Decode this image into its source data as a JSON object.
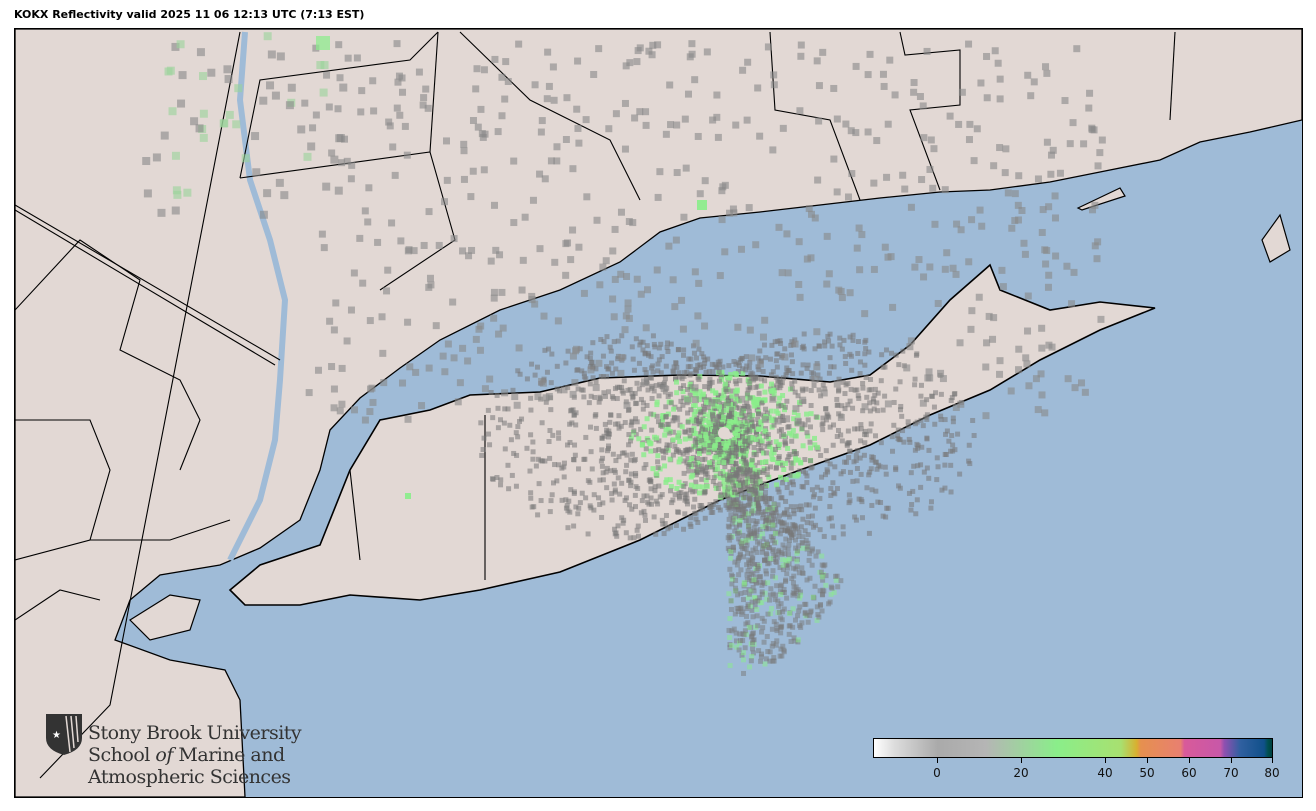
{
  "title": "KOKX Reflectivity valid 2025 11 06 12:13 UTC (7:13 EST)",
  "colors": {
    "water": "#9fbbd7",
    "land": "#e2d8d4",
    "border": "#000000",
    "radar_gray": "#8a8a8a",
    "radar_green": "#8aee8a"
  },
  "colorbar": {
    "ticks": [
      {
        "value": 0,
        "label": "0"
      },
      {
        "value": 20,
        "label": "20"
      },
      {
        "value": 40,
        "label": "40"
      },
      {
        "value": 50,
        "label": "50"
      },
      {
        "value": 60,
        "label": "60"
      },
      {
        "value": 70,
        "label": "70"
      },
      {
        "value": 80,
        "label": "80"
      }
    ]
  },
  "logo": {
    "line1": "Stony Brook University",
    "line2a": "School ",
    "line2b": "of",
    "line2c": " Marine and",
    "line3": "Atmospheric Sciences"
  }
}
